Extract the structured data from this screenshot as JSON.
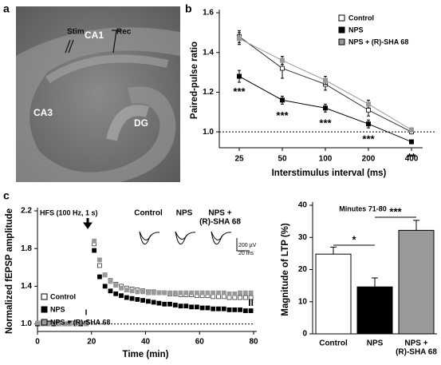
{
  "panel_labels": [
    "a",
    "b",
    "c"
  ],
  "image_labels": {
    "stim": "Stim",
    "ca1": "CA1",
    "rec": "Rec",
    "ca3": "CA3",
    "dg": "DG"
  },
  "chart_data": [
    {
      "type": "line",
      "ylabel": "Paired-pulse ratio",
      "xlabel": "Interstimulus interval (ms)",
      "categories": [
        "25",
        "50",
        "100",
        "200",
        "400"
      ],
      "ylim": [
        0.92,
        1.6
      ],
      "yticks": [
        {
          "value": 1,
          "label": "1.0"
        },
        1.2,
        1.4,
        1.6
      ],
      "hline": 1,
      "series": [
        {
          "name": "Control",
          "color": "#ffffff",
          "values": [
            1.48,
            1.32,
            1.24,
            1.11,
            1.0
          ],
          "errors": [
            0.03,
            0.05,
            0.03,
            0.03,
            0.01
          ]
        },
        {
          "name": "NPS",
          "color": "#000000",
          "values": [
            1.28,
            1.16,
            1.12,
            1.04,
            0.95
          ],
          "errors": [
            0.03,
            0.02,
            0.02,
            0.02,
            0.01
          ]
        },
        {
          "name": "NPS + (R)-SHA 68",
          "color": "#999999",
          "values": [
            1.47,
            1.36,
            1.26,
            1.14,
            1.01
          ],
          "errors": [
            0.03,
            0.02,
            0.02,
            0.02,
            0.01
          ]
        }
      ],
      "annotations": [
        "***",
        "***",
        "***",
        "***",
        "**"
      ]
    },
    {
      "type": "scatter",
      "ylabel": "Normalized fEPSP amplitude",
      "xlabel": "Time (min)",
      "xlim": [
        0,
        80
      ],
      "xticks": [
        0,
        20,
        40,
        60,
        80
      ],
      "ylim": [
        0.92,
        2.2
      ],
      "yticks": [
        {
          "value": 1,
          "label": "1.0"
        },
        1.4,
        1.8,
        2.2
      ],
      "hline": 1,
      "x": [
        0,
        2,
        4,
        6,
        8,
        10,
        12,
        14,
        16,
        18,
        21,
        23,
        25,
        27,
        29,
        31,
        33,
        35,
        37,
        39,
        41,
        43,
        45,
        47,
        49,
        51,
        53,
        55,
        57,
        59,
        61,
        63,
        65,
        67,
        69,
        71,
        73,
        75,
        77,
        79
      ],
      "series": [
        {
          "name": "Control",
          "color": "#ffffff",
          "values": [
            1.0,
            1.01,
            1.0,
            1.0,
            1.01,
            1.0,
            1.0,
            1.01,
            1.0,
            1.0,
            1.85,
            1.62,
            1.52,
            1.46,
            1.42,
            1.4,
            1.38,
            1.37,
            1.36,
            1.35,
            1.34,
            1.34,
            1.33,
            1.33,
            1.32,
            1.32,
            1.31,
            1.31,
            1.31,
            1.3,
            1.3,
            1.3,
            1.29,
            1.29,
            1.29,
            1.28,
            1.28,
            1.28,
            1.28,
            1.28
          ]
        },
        {
          "name": "NPS",
          "color": "#000000",
          "values": [
            1.0,
            1.0,
            1.01,
            1.0,
            1.0,
            1.0,
            1.01,
            1.0,
            1.0,
            1.01,
            1.78,
            1.5,
            1.4,
            1.35,
            1.32,
            1.3,
            1.28,
            1.27,
            1.26,
            1.25,
            1.24,
            1.23,
            1.22,
            1.21,
            1.21,
            1.2,
            1.19,
            1.19,
            1.18,
            1.18,
            1.17,
            1.17,
            1.16,
            1.16,
            1.16,
            1.15,
            1.15,
            1.15,
            1.14,
            1.14
          ]
        },
        {
          "name": "NPS + (R)-SHA 68",
          "color": "#999999",
          "values": [
            1.01,
            1.0,
            1.0,
            1.01,
            1.0,
            1.0,
            1.0,
            1.0,
            1.01,
            1.0,
            1.88,
            1.68,
            1.52,
            1.45,
            1.41,
            1.38,
            1.36,
            1.35,
            1.34,
            1.34,
            1.33,
            1.33,
            1.33,
            1.33,
            1.33,
            1.33,
            1.33,
            1.33,
            1.33,
            1.33,
            1.33,
            1.33,
            1.33,
            1.33,
            1.33,
            1.32,
            1.32,
            1.33,
            1.33,
            1.33
          ]
        }
      ],
      "annotations": {
        "hfs": "HFS (100 Hz, 1 s)",
        "phase1": "I",
        "phase2": "II"
      },
      "insets": [
        [
          "Control"
        ],
        [
          "NPS"
        ],
        [
          "NPS +",
          "(R)-SHA 68"
        ]
      ],
      "scale_bar": [
        "200 µV",
        "20 ms"
      ]
    },
    {
      "type": "bar",
      "title": "Minutes 71-80",
      "ylabel": "Magnitude of LTP (%)",
      "categories": [
        [
          "Control"
        ],
        [
          "NPS"
        ],
        [
          "NPS +",
          "(R)-SHA 68"
        ]
      ],
      "values": [
        24.8,
        14.6,
        32.2
      ],
      "errors": [
        2.2,
        2.8,
        3.1
      ],
      "colors": [
        "#ffffff",
        "#000000",
        "#999999"
      ],
      "ylim": [
        0,
        40
      ],
      "yticks": [
        0,
        10,
        20,
        30,
        40
      ],
      "annotations": [
        "*",
        "***"
      ]
    }
  ]
}
